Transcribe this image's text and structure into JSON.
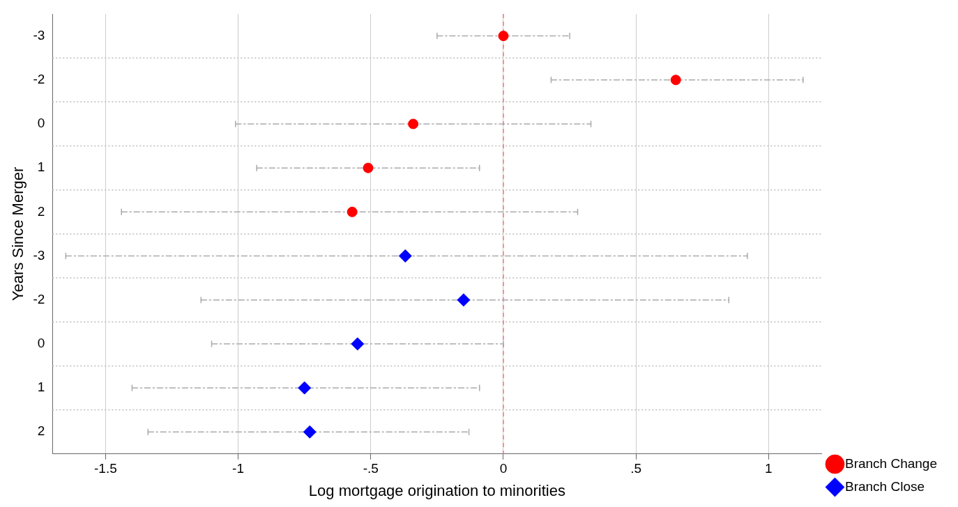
{
  "chart_data": {
    "type": "scatter",
    "orientation": "horizontal",
    "xlabel": "Log mortgage origination to minorities",
    "ylabel": "Years Since Merger",
    "categories": [
      "-3",
      "-2",
      "0",
      "1",
      "2",
      "-3",
      "-2",
      "0",
      "1",
      "2"
    ],
    "series": [
      {
        "name": "Branch Change",
        "color": "#ff0000",
        "marker": "circle",
        "values": [
          0.0,
          0.65,
          -0.34,
          -0.51,
          -0.57,
          null,
          null,
          null,
          null,
          null
        ],
        "errors": [
          [
            -0.25,
            0.25
          ],
          [
            0.18,
            1.13
          ],
          [
            -1.01,
            0.33
          ],
          [
            -0.93,
            -0.09
          ],
          [
            -1.44,
            0.28
          ],
          null,
          null,
          null,
          null,
          null
        ]
      },
      {
        "name": "Branch Close",
        "color": "#0000ff",
        "marker": "diamond",
        "values": [
          null,
          null,
          null,
          null,
          null,
          -0.37,
          -0.15,
          -0.55,
          -0.75,
          -0.73
        ],
        "errors": [
          null,
          null,
          null,
          null,
          null,
          [
            -1.65,
            0.92
          ],
          [
            -1.14,
            0.85
          ],
          [
            -1.1,
            0.0
          ],
          [
            -1.4,
            -0.09
          ],
          [
            -1.34,
            -0.13
          ]
        ]
      }
    ],
    "xlim": [
      -1.7,
      1.2
    ],
    "xticks": [
      {
        "value": -1.5,
        "label": "-1.5"
      },
      {
        "value": -1,
        "label": "-1"
      },
      {
        "value": -0.5,
        "label": "-.5"
      },
      0,
      {
        "value": 0.5,
        "label": ".5"
      },
      1
    ],
    "ref_lines": [
      {
        "axis": "x",
        "value": 0,
        "color": "#ff6f7f",
        "line_style": "dashed"
      }
    ],
    "grid": true,
    "legend": "bottom right"
  }
}
